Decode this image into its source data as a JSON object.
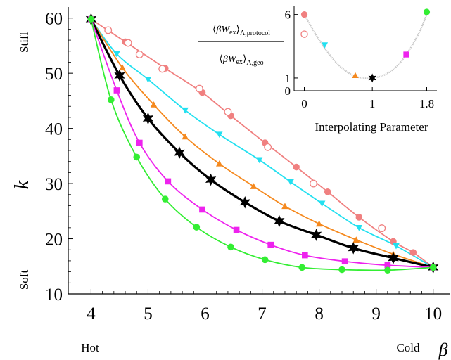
{
  "chart_data": [
    {
      "type": "line",
      "xlabel": "β",
      "ylabel": "k",
      "xlim": [
        3.6,
        10.3
      ],
      "ylim": [
        10,
        62
      ],
      "x_ticks": [
        "4",
        "5",
        "6",
        "7",
        "8",
        "9",
        "10"
      ],
      "y_ticks": [
        "10",
        "20",
        "30",
        "40",
        "50",
        "60"
      ],
      "x_end_labels": {
        "left": "Hot",
        "right": "Cold"
      },
      "y_end_labels": {
        "top": "Stiff",
        "bottom": "Soft"
      },
      "series": [
        {
          "key": "salmon-filled",
          "color": "#f08080",
          "marker": "filled-circle",
          "x": [
            4,
            4.6,
            5.3,
            5.95,
            6.45,
            7.05,
            7.6,
            8.15,
            8.7,
            9.3,
            9.65,
            10
          ],
          "y": [
            59.8,
            55.7,
            50.9,
            46.5,
            42.3,
            37.4,
            33.0,
            28.5,
            23.9,
            19.5,
            17.5,
            14.8
          ]
        },
        {
          "key": "salmon-open",
          "color": "#f08080",
          "marker": "open-circle",
          "x": [
            4.3,
            4.65,
            4.85,
            5.25,
            5.9,
            6.4,
            7.1,
            7.9,
            9.1
          ],
          "y": [
            57.8,
            55.5,
            53.4,
            50.8,
            47.2,
            43.0,
            36.6,
            30.0,
            21.9
          ]
        },
        {
          "key": "cyan",
          "color": "#22e0f0",
          "marker": "triangle-down",
          "x": [
            4,
            4.45,
            5.0,
            5.65,
            6.25,
            6.95,
            7.5,
            8.05,
            8.7,
            9.35,
            10
          ],
          "y": [
            59.8,
            53.5,
            48.9,
            43.3,
            38.9,
            34.3,
            30.3,
            26.4,
            22.0,
            18.7,
            14.8
          ]
        },
        {
          "key": "orange",
          "color": "#f5891e",
          "marker": "triangle-up",
          "x": [
            4,
            4.55,
            5.1,
            5.65,
            6.25,
            6.85,
            7.4,
            8.0,
            8.65,
            9.3,
            10
          ],
          "y": [
            59.8,
            51.0,
            44.3,
            38.5,
            33.6,
            29.5,
            25.9,
            22.7,
            19.8,
            17.2,
            14.8
          ]
        },
        {
          "key": "black",
          "color": "#000000",
          "marker": "star",
          "x": [
            4,
            4.5,
            5.0,
            5.55,
            6.1,
            6.7,
            7.3,
            7.95,
            8.6,
            9.3,
            10
          ],
          "y": [
            59.8,
            49.6,
            41.8,
            35.6,
            30.7,
            26.6,
            23.2,
            20.7,
            18.3,
            16.5,
            14.8
          ]
        },
        {
          "key": "magenta",
          "color": "#ee22ee",
          "marker": "square",
          "x": [
            4,
            4.45,
            4.85,
            5.35,
            5.95,
            6.55,
            7.15,
            7.75,
            8.45,
            9.2,
            10
          ],
          "y": [
            59.8,
            46.9,
            37.4,
            30.4,
            25.3,
            21.6,
            18.9,
            17.0,
            15.9,
            15.2,
            14.8
          ]
        },
        {
          "key": "green",
          "color": "#33ee33",
          "marker": "filled-circle",
          "x": [
            4,
            4.35,
            4.8,
            5.3,
            5.85,
            6.45,
            7.05,
            7.7,
            8.4,
            9.2,
            10
          ],
          "y": [
            59.8,
            45.2,
            34.8,
            27.2,
            22.1,
            18.5,
            16.2,
            14.8,
            14.4,
            14.3,
            14.8
          ]
        }
      ]
    },
    {
      "type": "scatter",
      "xlabel": "Interpolating Parameter",
      "ylabel_numerator": "⟨βW_ex⟩_Λ,protocol",
      "ylabel_denominator": "⟨βW_ex⟩_Λ,geo",
      "ylabel_parts": {
        "num_base": "βW",
        "num_sub1": "ex",
        "num_sub2": "Λ,protocol",
        "den_base": "βW",
        "den_sub1": "ex",
        "den_sub2": "Λ,geo",
        "lang": "⟨",
        "rang": "⟩"
      },
      "xlim": [
        -0.15,
        1.95
      ],
      "ylim": [
        0,
        6.7
      ],
      "x_ticks": [
        "0",
        "1",
        "1.8"
      ],
      "y_ticks": [
        "0",
        "1",
        "6"
      ],
      "curve": {
        "x": [
          0,
          0.1,
          0.2,
          0.3,
          0.4,
          0.5,
          0.6,
          0.7,
          0.8,
          0.9,
          1.0,
          1.1,
          1.2,
          1.3,
          1.4,
          1.5,
          1.6,
          1.7,
          1.8
        ],
        "y": [
          6.0,
          5.05,
          4.15,
          3.35,
          2.65,
          2.05,
          1.6,
          1.25,
          1.05,
          0.98,
          1.0,
          1.1,
          1.3,
          1.65,
          2.15,
          2.85,
          3.7,
          4.7,
          6.0
        ]
      },
      "points": [
        {
          "key": "salmon-filled",
          "x": 0.0,
          "y": 6.0,
          "color": "#f08080",
          "marker": "filled-circle"
        },
        {
          "key": "salmon-open",
          "x": 0.0,
          "y": 4.45,
          "color": "#f08080",
          "marker": "open-circle"
        },
        {
          "key": "cyan",
          "x": 0.3,
          "y": 3.6,
          "color": "#22e0f0",
          "marker": "triangle-down"
        },
        {
          "key": "orange",
          "x": 0.75,
          "y": 1.2,
          "color": "#f5891e",
          "marker": "triangle-up"
        },
        {
          "key": "black",
          "x": 1.0,
          "y": 1.0,
          "color": "#000000",
          "marker": "star"
        },
        {
          "key": "magenta",
          "x": 1.5,
          "y": 2.85,
          "color": "#ee22ee",
          "marker": "square"
        },
        {
          "key": "green",
          "x": 1.8,
          "y": 6.2,
          "color": "#33ee33",
          "marker": "filled-circle"
        }
      ]
    }
  ]
}
